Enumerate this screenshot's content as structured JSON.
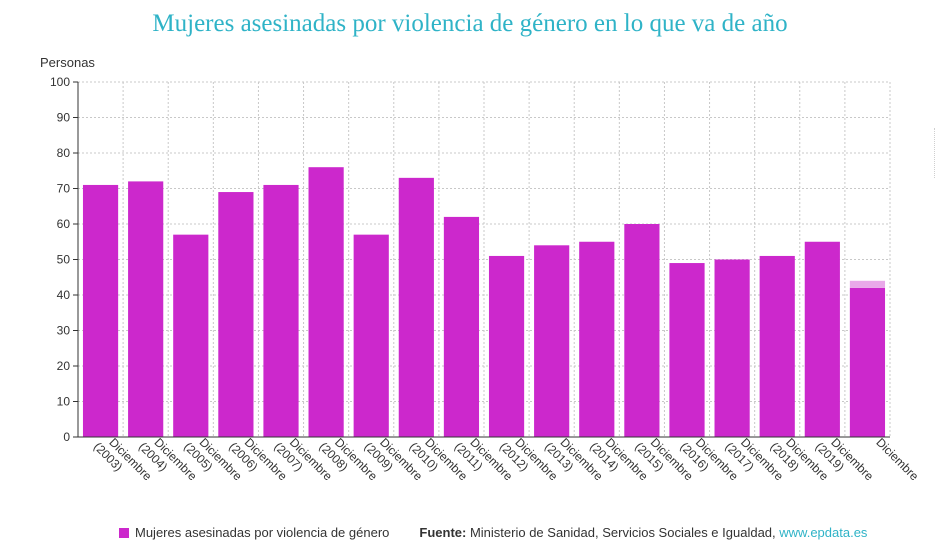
{
  "title": "Mujeres asesinadas por violencia de género en lo que va de año",
  "footer": {
    "legend_label": "Mujeres asesinadas por violencia de género",
    "source_prefix": "Fuente:",
    "source_text": "Ministerio de Sanidad, Servicios Sociales e Igualdad,",
    "source_link": "www.epdata.es"
  },
  "colors": {
    "bar": "#cc28cc",
    "bar_pending": "#e9a8e9",
    "title": "#2fb3c7",
    "grid": "#c8c8c8"
  },
  "chart_data": {
    "type": "bar",
    "title": "Mujeres asesinadas por violencia de género en lo que va de año",
    "ylabel": "Personas",
    "xlabel": "",
    "ylim": [
      0,
      100
    ],
    "yticks": [
      0,
      10,
      20,
      30,
      40,
      50,
      60,
      70,
      80,
      90,
      100
    ],
    "grid": true,
    "categories": [
      [
        "Diciembre",
        "(2003)"
      ],
      [
        "Diciembre",
        "(2004)"
      ],
      [
        "Diciembre",
        "(2005)"
      ],
      [
        "Diciembre",
        "(2006)"
      ],
      [
        "Diciembre",
        "(2007)"
      ],
      [
        "Diciembre",
        "(2008)"
      ],
      [
        "Diciembre",
        "(2009)"
      ],
      [
        "Diciembre",
        "(2010)"
      ],
      [
        "Diciembre",
        "(2011)"
      ],
      [
        "Diciembre",
        "(2012)"
      ],
      [
        "Diciembre",
        "(2013)"
      ],
      [
        "Diciembre",
        "(2014)"
      ],
      [
        "Diciembre",
        "(2015)"
      ],
      [
        "Diciembre",
        "(2016)"
      ],
      [
        "Diciembre",
        "(2017)"
      ],
      [
        "Diciembre",
        "(2018)"
      ],
      [
        "Diciembre",
        "(2019)"
      ],
      [
        "Diciembre"
      ]
    ],
    "series": [
      {
        "name": "Mujeres asesinadas por violencia de género",
        "values": [
          71,
          72,
          57,
          69,
          71,
          76,
          57,
          73,
          62,
          51,
          54,
          55,
          60,
          49,
          50,
          51,
          55,
          42
        ]
      },
      {
        "values": [
          0,
          0,
          0,
          0,
          0,
          0,
          0,
          0,
          0,
          0,
          0,
          0,
          0,
          0,
          0,
          0,
          0,
          2
        ]
      }
    ],
    "legend": "bottom"
  }
}
